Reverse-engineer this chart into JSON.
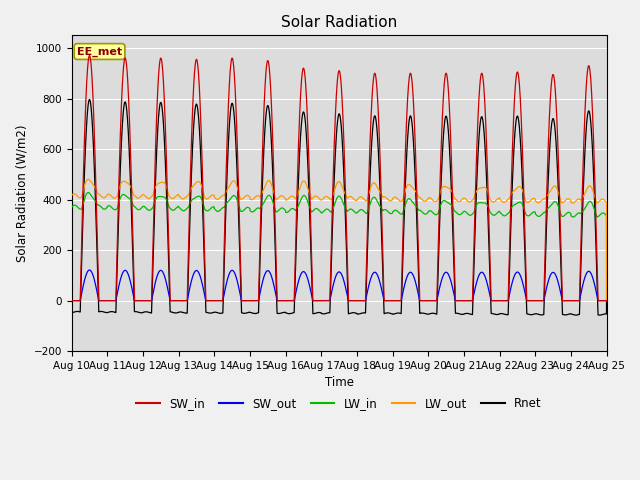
{
  "title": "Solar Radiation",
  "ylabel": "Solar Radiation (W/m2)",
  "xlabel": "Time",
  "ylim": [
    -200,
    1050
  ],
  "annotation": "EE_met",
  "plot_bg": "#dcdcdc",
  "fig_bg": "#f0f0f0",
  "colors": {
    "SW_in": "#cc0000",
    "SW_out": "#0000ee",
    "LW_in": "#00bb00",
    "LW_out": "#ff9900",
    "Rnet": "#000000"
  },
  "n_days": 15,
  "title_fontsize": 11,
  "tick_label_fontsize": 7.5
}
